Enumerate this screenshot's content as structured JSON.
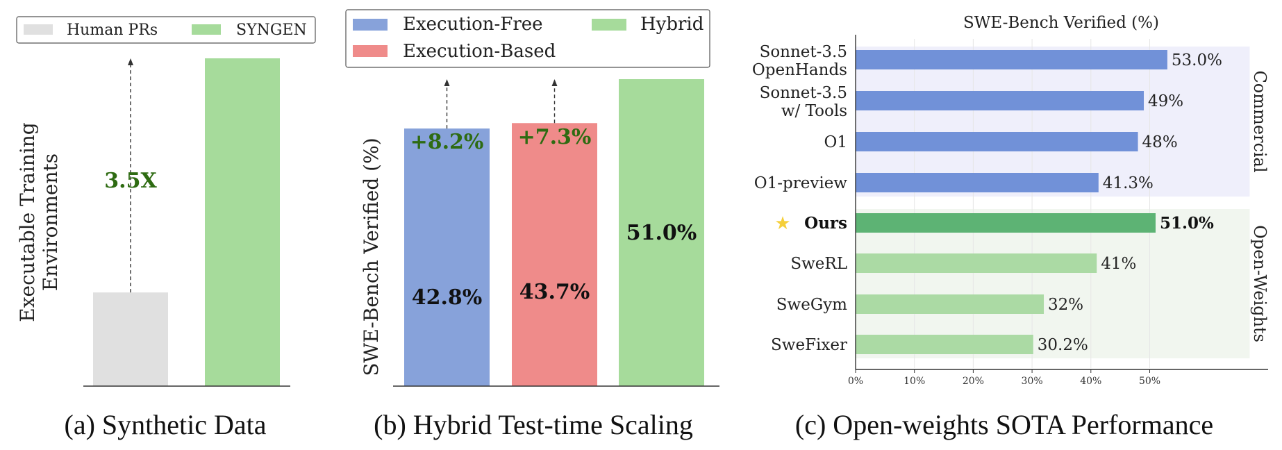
{
  "chart_data": [
    {
      "type": "bar",
      "caption": "(a) Synthetic Data",
      "ylabel": [
        "Executable  Training",
        "Environments"
      ],
      "legend": [
        "Human PRs",
        "SYNGEN"
      ],
      "legend_position": "top",
      "categories": [
        "Human PRs",
        "SYNGEN"
      ],
      "values": [
        1,
        3.5
      ],
      "annotation": "3.5X",
      "colors": [
        "#e0e0e0",
        "#a6db9b"
      ],
      "grid": false
    },
    {
      "type": "bar",
      "caption": "(b) Hybrid Test-time Scaling",
      "ylabel": "SWE-Bench Verified (%)",
      "legend": [
        "Execution-Free",
        "Hybrid",
        "Execution-Based"
      ],
      "legend_position": "top",
      "categories": [
        "Execution-Free",
        "Execution-Based",
        "Hybrid"
      ],
      "values": [
        42.8,
        43.7,
        51.0
      ],
      "value_labels": [
        "42.8%",
        "43.7%",
        "51.0%"
      ],
      "gain_labels": [
        "+8.2%",
        "+7.3%"
      ],
      "ylim": [
        0,
        56
      ],
      "colors": [
        "#87a2da",
        "#ef8b8a",
        "#a6db9b"
      ],
      "annotation_color": "#2e6b12",
      "grid": false
    },
    {
      "type": "bar",
      "orientation": "horizontal",
      "caption": "(c) Open-weights SOTA Performance",
      "title": "SWE-Bench Verified (%)",
      "xlim": [
        0,
        70
      ],
      "xticks": [
        "0%",
        "10%",
        "20%",
        "30%",
        "40%",
        "50%"
      ],
      "groups": [
        {
          "name": "Commercial",
          "bg": "#efeffb",
          "color": "#7191d8",
          "bars": [
            {
              "label": [
                "Sonnet-3.5",
                "OpenHands"
              ],
              "value": 53.0,
              "value_label": "53.0%"
            },
            {
              "label": [
                "Sonnet-3.5",
                "w/ Tools"
              ],
              "value": 49,
              "value_label": "49%"
            },
            {
              "label": [
                "O1"
              ],
              "value": 48,
              "value_label": "48%"
            },
            {
              "label": [
                "O1-preview"
              ],
              "value": 41.3,
              "value_label": "41.3%"
            }
          ]
        },
        {
          "name": "Open-Weights",
          "bg": "#f1f6ef",
          "color": "#abdaa4",
          "bars": [
            {
              "label": [
                "Ours"
              ],
              "value": 51.0,
              "value_label": "51.0%",
              "highlight": true,
              "color": "#5db374",
              "star": "★"
            },
            {
              "label": [
                "SweRL"
              ],
              "value": 41,
              "value_label": "41%"
            },
            {
              "label": [
                "SweGym"
              ],
              "value": 32,
              "value_label": "32%"
            },
            {
              "label": [
                "SweFixer"
              ],
              "value": 30.2,
              "value_label": "30.2%"
            }
          ]
        }
      ],
      "grid": true
    }
  ]
}
